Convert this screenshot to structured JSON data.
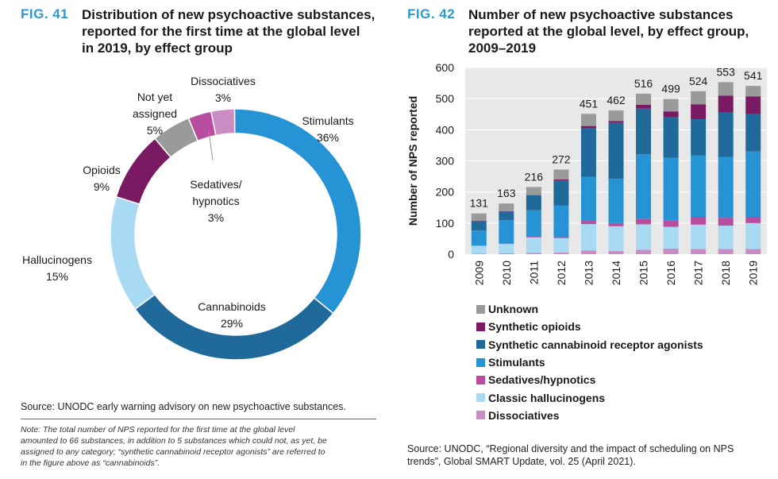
{
  "fig41": {
    "label": "FIG. 41",
    "title_lines": [
      "Distribution of new psychoactive substances,",
      "reported for the first time at the global level",
      "in 2019, by effect group"
    ],
    "source": "Source: UNODC early warning advisory on new psychoactive substances.",
    "note_lines": [
      "Note: The total number of NPS reported for the first time at the global level",
      "amounted to 66 substances, in addition to 5 substances which could not, as yet, be",
      "assigned to any category; “synthetic cannabinoid receptor agonists” are referred to",
      "in the figure above as “cannabinoids”."
    ]
  },
  "fig42": {
    "label": "FIG. 42",
    "title_lines": [
      "Number of new psychoactive substances",
      "reported at the global level, by effect group,",
      "2009–2019"
    ],
    "source_lines": [
      "Source: UNODC, “Regional diversity and the impact of scheduling on NPS",
      "trends”, Global SMART Update, vol. 25 (April 2021)."
    ]
  },
  "colors": {
    "stimulants": "#2693d4",
    "cannabinoids": "#1f6a9a",
    "hallucinogens": "#a9daf3",
    "opioids": "#7a1a63",
    "not_assigned": "#9a9a9a",
    "sedatives": "#b84da0",
    "dissociatives": "#c98dc3",
    "title_blue": "#2a9ad6",
    "plot_bg": "#e8e8e8"
  },
  "chart_data": [
    {
      "type": "pie",
      "title": "Distribution of new psychoactive substances, reported for the first time at the global level in 2019, by effect group",
      "unit": "%",
      "slices": [
        {
          "key": "stimulants",
          "label_lines": [
            "Stimulants"
          ],
          "value": 36
        },
        {
          "key": "cannabinoids",
          "label_lines": [
            "Cannabinoids"
          ],
          "value": 29
        },
        {
          "key": "hallucinogens",
          "label_lines": [
            "Hallucinogens"
          ],
          "value": 15
        },
        {
          "key": "opioids",
          "label_lines": [
            "Opioids"
          ],
          "value": 9
        },
        {
          "key": "not_assigned",
          "label_lines": [
            "Not yet",
            "assigned"
          ],
          "value": 5
        },
        {
          "key": "sedatives",
          "label_lines": [
            "Sedatives/",
            "hypnotics"
          ],
          "value": 3
        },
        {
          "key": "dissociatives",
          "label_lines": [
            "Dissociatives"
          ],
          "value": 3
        }
      ]
    },
    {
      "type": "bar",
      "stacked": true,
      "title": "Number of new psychoactive substances reported at the global level, by effect group, 2009–2019",
      "ylabel": "Number of NPS reported",
      "ylim": [
        0,
        600
      ],
      "yticks": [
        0,
        100,
        200,
        300,
        400,
        500,
        600
      ],
      "categories": [
        "2009",
        "2010",
        "2011",
        "2012",
        "2013",
        "2014",
        "2015",
        "2016",
        "2017",
        "2018",
        "2019"
      ],
      "totals": [
        131,
        163,
        216,
        272,
        451,
        462,
        516,
        499,
        524,
        553,
        541
      ],
      "series": [
        {
          "key": "dissociatives",
          "name": "Dissociatives",
          "values": [
            2,
            3,
            4,
            5,
            12,
            10,
            14,
            18,
            17,
            17,
            17
          ]
        },
        {
          "key": "hallucinogens",
          "name": "Classic hallucinogens",
          "values": [
            25,
            30,
            50,
            47,
            85,
            80,
            82,
            70,
            78,
            75,
            83
          ]
        },
        {
          "key": "sedatives",
          "name": "Sedatives/hypnotics",
          "values": [
            1,
            1,
            2,
            3,
            10,
            10,
            17,
            20,
            25,
            25,
            20
          ]
        },
        {
          "key": "stimulants",
          "name": "Stimulants",
          "values": [
            48,
            75,
            85,
            102,
            142,
            142,
            208,
            202,
            197,
            195,
            210
          ]
        },
        {
          "key": "cannabinoids",
          "name": "Synthetic cannabinoid receptor agonists",
          "values": [
            30,
            28,
            48,
            80,
            155,
            180,
            147,
            130,
            117,
            143,
            120
          ]
        },
        {
          "key": "opioids",
          "name": "Synthetic opioids",
          "values": [
            1,
            1,
            1,
            3,
            8,
            6,
            12,
            19,
            48,
            55,
            57
          ]
        },
        {
          "key": "unknown",
          "name": "Unknown",
          "values": [
            24,
            25,
            26,
            32,
            39,
            34,
            36,
            40,
            42,
            43,
            34
          ]
        }
      ],
      "series_colors": {
        "dissociatives": "#c98dc3",
        "hallucinogens": "#a9daf3",
        "sedatives": "#b84da0",
        "stimulants": "#2693d4",
        "cannabinoids": "#1f6a9a",
        "opioids": "#7a1a63",
        "unknown": "#9a9a9a"
      },
      "legend_order": [
        "unknown",
        "opioids",
        "cannabinoids",
        "stimulants",
        "sedatives",
        "hallucinogens",
        "dissociatives"
      ]
    }
  ]
}
